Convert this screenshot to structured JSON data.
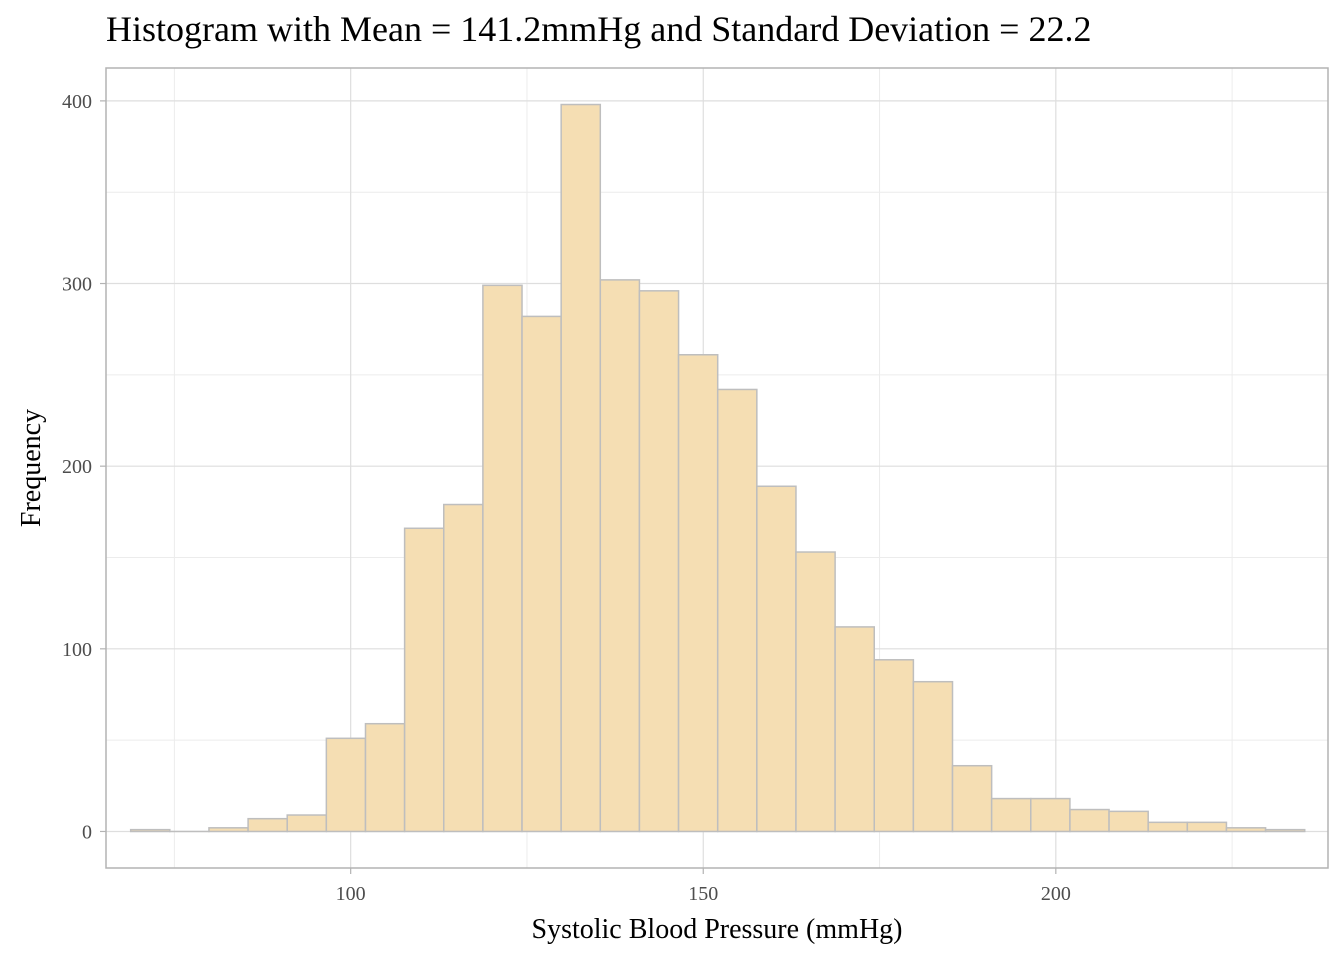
{
  "chart_data": {
    "type": "bar",
    "title": "Histogram with Mean = 141.2mmHg and Standard Deviation = 22.2",
    "xlabel": "Systolic Blood Pressure (mmHg)",
    "ylabel": "Frequency",
    "xlim": [
      65.3,
      238.6
    ],
    "ylim": [
      -20,
      418
    ],
    "x_ticks": [
      100,
      150,
      200
    ],
    "y_ticks": [
      0,
      100,
      200,
      300,
      400
    ],
    "x_minor": [
      75,
      125,
      175,
      225
    ],
    "y_minor": [
      50,
      150,
      250,
      350
    ],
    "grid": true,
    "bin_width": 5.55,
    "bins": [
      {
        "x0": 68.8,
        "x1": 74.35,
        "count": 1
      },
      {
        "x0": 74.35,
        "x1": 79.9,
        "count": 0
      },
      {
        "x0": 79.9,
        "x1": 85.45,
        "count": 2
      },
      {
        "x0": 85.45,
        "x1": 91.0,
        "count": 7
      },
      {
        "x0": 91.0,
        "x1": 96.55,
        "count": 9
      },
      {
        "x0": 96.55,
        "x1": 102.1,
        "count": 51
      },
      {
        "x0": 102.1,
        "x1": 107.65,
        "count": 59
      },
      {
        "x0": 107.65,
        "x1": 113.2,
        "count": 166
      },
      {
        "x0": 113.2,
        "x1": 118.75,
        "count": 179
      },
      {
        "x0": 118.75,
        "x1": 124.3,
        "count": 299
      },
      {
        "x0": 124.3,
        "x1": 129.85,
        "count": 282
      },
      {
        "x0": 129.85,
        "x1": 135.4,
        "count": 398
      },
      {
        "x0": 135.4,
        "x1": 140.95,
        "count": 302
      },
      {
        "x0": 140.95,
        "x1": 146.5,
        "count": 296
      },
      {
        "x0": 146.5,
        "x1": 152.05,
        "count": 261
      },
      {
        "x0": 152.05,
        "x1": 157.6,
        "count": 242
      },
      {
        "x0": 157.6,
        "x1": 163.15,
        "count": 189
      },
      {
        "x0": 163.15,
        "x1": 168.7,
        "count": 153
      },
      {
        "x0": 168.7,
        "x1": 174.25,
        "count": 112
      },
      {
        "x0": 174.25,
        "x1": 179.8,
        "count": 94
      },
      {
        "x0": 179.8,
        "x1": 185.35,
        "count": 82
      },
      {
        "x0": 185.35,
        "x1": 190.9,
        "count": 36
      },
      {
        "x0": 190.9,
        "x1": 196.45,
        "count": 18
      },
      {
        "x0": 196.45,
        "x1": 202.0,
        "count": 18
      },
      {
        "x0": 202.0,
        "x1": 207.55,
        "count": 12
      },
      {
        "x0": 207.55,
        "x1": 213.1,
        "count": 11
      },
      {
        "x0": 213.1,
        "x1": 218.65,
        "count": 5
      },
      {
        "x0": 218.65,
        "x1": 224.2,
        "count": 5
      },
      {
        "x0": 224.2,
        "x1": 229.75,
        "count": 2
      },
      {
        "x0": 229.75,
        "x1": 235.3,
        "count": 1
      }
    ],
    "colors": {
      "bar_fill": "#f5deb3",
      "bar_stroke": "#bebebe",
      "grid_major": "#dedede",
      "grid_minor": "#ececec",
      "panel_border": "#b3b3b3",
      "tick_text": "#4d4d4d"
    }
  }
}
